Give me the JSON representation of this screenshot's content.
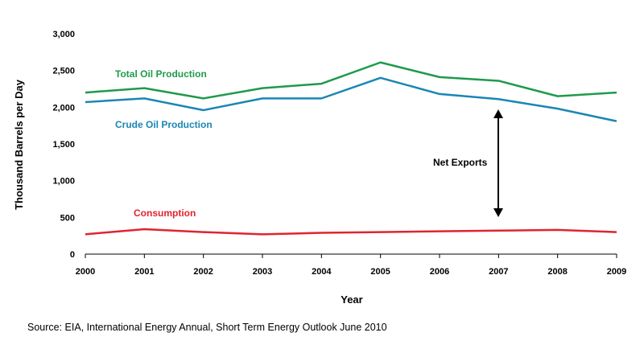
{
  "chart_data": {
    "type": "line",
    "title": "",
    "xlabel": "Year",
    "ylabel": "Thousand Barrels per Day",
    "x": [
      "2000",
      "2001",
      "2002",
      "2003",
      "2004",
      "2005",
      "2006",
      "2007",
      "2008",
      "2009"
    ],
    "y_ticks": [
      "0",
      "500",
      "1,000",
      "1,500",
      "2,000",
      "2,500",
      "3,000"
    ],
    "ylim": [
      0,
      3000
    ],
    "grid": false,
    "series": [
      {
        "name": "Total Oil Production",
        "color": "#1e9a4c",
        "values": [
          2200,
          2260,
          2120,
          2260,
          2320,
          2610,
          2410,
          2360,
          2150,
          2200
        ]
      },
      {
        "name": "Crude Oil Production",
        "color": "#1a86b4",
        "values": [
          2070,
          2120,
          1960,
          2120,
          2120,
          2400,
          2180,
          2110,
          1980,
          1810
        ]
      },
      {
        "name": "Consumption",
        "color": "#e0242f",
        "values": [
          270,
          340,
          300,
          270,
          290,
          300,
          310,
          320,
          330,
          300
        ]
      }
    ],
    "annotations": [
      {
        "text": "Net Exports"
      }
    ]
  },
  "source_text": "Source: EIA, International Energy Annual, Short Term Energy Outlook June 2010"
}
